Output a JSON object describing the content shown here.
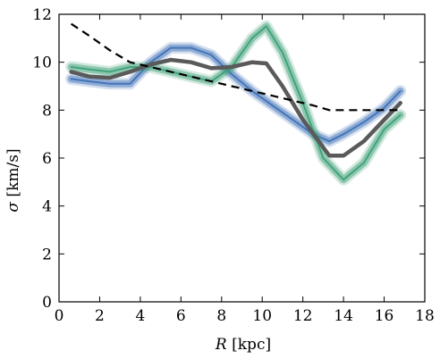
{
  "chart_data": {
    "type": "line",
    "xlabel_italic": "R",
    "xlabel_rest": " [kpc]",
    "ylabel_italic": "σ",
    "ylabel_rest": " [km/s]",
    "xlim": [
      0,
      18
    ],
    "ylim": [
      0,
      12
    ],
    "xticks": [
      "0",
      "2",
      "4",
      "6",
      "8",
      "10",
      "12",
      "14",
      "16",
      "18"
    ],
    "yticks": [
      "0",
      "2",
      "4",
      "6",
      "8",
      "10",
      "12"
    ],
    "grid": false,
    "legend": "none",
    "series": [
      {
        "color": "#3b6fb6",
        "style": "band",
        "x": [
          0.6,
          1.5,
          2.5,
          3.5,
          4.5,
          5.5,
          6.5,
          7.5,
          8.5,
          9.5,
          10.5,
          11.5,
          12.5,
          13.3,
          14.0,
          15.0,
          16.0,
          16.8
        ],
        "y": [
          9.3,
          9.2,
          9.1,
          9.1,
          10.0,
          10.6,
          10.6,
          10.3,
          9.5,
          8.8,
          8.2,
          7.6,
          7.0,
          6.7,
          7.0,
          7.5,
          8.1,
          8.8
        ]
      },
      {
        "color": "#3a9e76",
        "style": "band",
        "x": [
          0.6,
          1.5,
          2.5,
          3.5,
          4.5,
          5.5,
          6.5,
          7.5,
          8.5,
          9.5,
          10.2,
          11.0,
          12.0,
          13.0,
          14.0,
          15.0,
          16.0,
          16.8
        ],
        "y": [
          9.8,
          9.7,
          9.6,
          9.8,
          9.8,
          9.6,
          9.4,
          9.2,
          9.8,
          11.0,
          11.5,
          10.4,
          8.3,
          6.0,
          5.1,
          5.8,
          7.2,
          7.8
        ]
      },
      {
        "color": "#5a5a5a",
        "style": "thick",
        "x": [
          0.6,
          1.5,
          2.5,
          3.5,
          4.5,
          5.5,
          6.5,
          7.5,
          8.5,
          9.5,
          10.2,
          11.0,
          12.0,
          13.3,
          14.0,
          15.0,
          16.0,
          16.8
        ],
        "y": [
          9.6,
          9.4,
          9.35,
          9.6,
          9.9,
          10.1,
          10.0,
          9.75,
          9.8,
          10.0,
          9.95,
          9.0,
          7.6,
          6.1,
          6.1,
          6.7,
          7.6,
          8.3
        ]
      },
      {
        "color": "#000000",
        "style": "dashed",
        "x": [
          0.6,
          1.5,
          2.5,
          3.5,
          4.5,
          5.5,
          6.5,
          7.5,
          8.5,
          9.5,
          10.5,
          11.5,
          12.5,
          13.3,
          14.0,
          15.0,
          16.0,
          16.8
        ],
        "y": [
          11.6,
          11.1,
          10.5,
          10.0,
          9.8,
          9.6,
          9.4,
          9.2,
          9.0,
          8.8,
          8.6,
          8.4,
          8.2,
          8.0,
          8.0,
          8.0,
          8.0,
          8.0
        ]
      }
    ]
  }
}
